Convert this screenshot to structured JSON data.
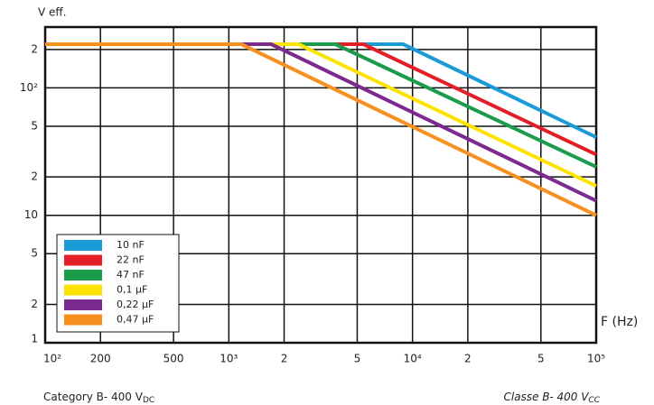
{
  "chart_data": {
    "type": "line",
    "y_label": "V eff.",
    "x_label": "F (Hz)",
    "footnote_left": {
      "text": "Category B- 400 V",
      "sub": "DC"
    },
    "footnote_right": {
      "text": "Classe B- 400 V",
      "sub": "CC"
    },
    "xlog": true,
    "ylog": true,
    "grid": true,
    "legend": "lower left",
    "xlim": [
      100,
      100000
    ],
    "ylim": [
      1,
      300
    ],
    "xticks": [
      {
        "value": 100,
        "label": "10²"
      },
      200,
      500,
      {
        "value": 1000,
        "label": "10³"
      },
      {
        "value": 2000,
        "label": "2"
      },
      {
        "value": 5000,
        "label": "5"
      },
      {
        "value": 10000,
        "label": "10⁴"
      },
      {
        "value": 20000,
        "label": "2"
      },
      {
        "value": 50000,
        "label": "5"
      },
      {
        "value": 100000,
        "label": "10⁵"
      }
    ],
    "yticks": [
      1,
      2,
      5,
      10,
      {
        "value": 20,
        "label": "2"
      },
      {
        "value": 50,
        "label": "5"
      },
      {
        "value": 100,
        "label": "10²"
      },
      {
        "value": 200,
        "label": "2"
      }
    ],
    "series": [
      {
        "name": "10 nF",
        "color": "#1a9ad6",
        "x": [
          100,
          8900,
          100000
        ],
        "values": [
          220,
          220,
          41
        ]
      },
      {
        "name": "22 nF",
        "color": "#e41e26",
        "x": [
          100,
          5400,
          100000
        ],
        "values": [
          220,
          220,
          30
        ]
      },
      {
        "name": "47 nF",
        "color": "#1a9c4a",
        "x": [
          100,
          3800,
          100000
        ],
        "values": [
          220,
          220,
          24
        ]
      },
      {
        "name": "0,1 µF",
        "color": "#fde300",
        "x": [
          100,
          2400,
          100000
        ],
        "values": [
          220,
          220,
          17
        ]
      },
      {
        "name": "0,22 µF",
        "color": "#7b2a8e",
        "x": [
          100,
          1700,
          100000
        ],
        "values": [
          220,
          220,
          13
        ]
      },
      {
        "name": "0,47 µF",
        "color": "#f7901e",
        "x": [
          100,
          1170,
          100000
        ],
        "values": [
          220,
          220,
          10
        ]
      }
    ]
  }
}
